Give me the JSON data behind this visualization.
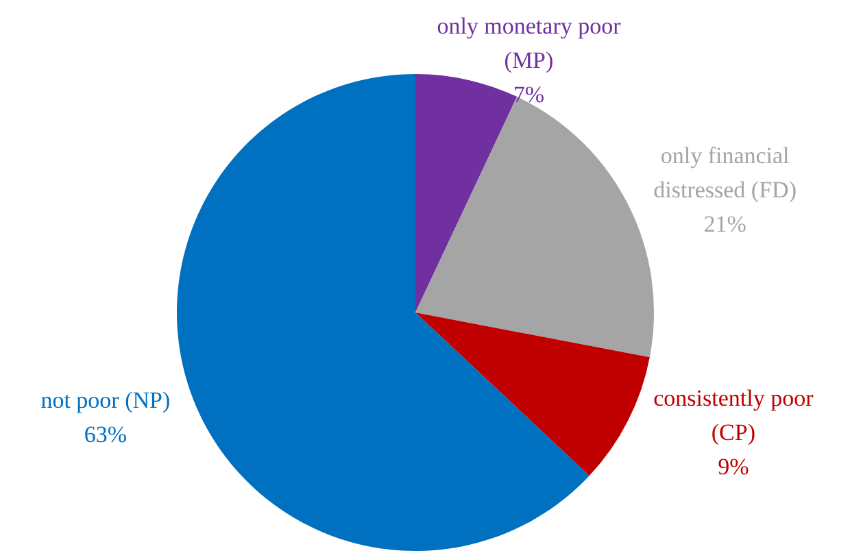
{
  "chart_data": {
    "type": "pie",
    "categories": [
      "only monetary poor (MP)",
      "only financial distressed (FD)",
      "consistently poor (CP)",
      "not poor (NP)"
    ],
    "values": [
      7,
      21,
      9,
      63
    ],
    "value_labels": [
      "7%",
      "21%",
      "9%",
      "63%"
    ],
    "colors": [
      "#7030a0",
      "#a5a5a5",
      "#c00000",
      "#0070c0"
    ],
    "legend": false
  }
}
